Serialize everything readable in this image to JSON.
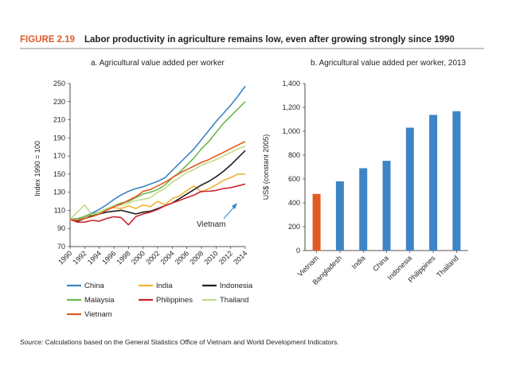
{
  "figure": {
    "number": "FIGURE 2.19",
    "title": "Labor productivity in agriculture remains low, even after growing strongly since 1990",
    "source_label": "Source:",
    "source_text": "Calculations based on the General Statistics Office of Vietnam and World Development Indicators."
  },
  "chart_data": [
    {
      "type": "line",
      "title": "a. Agricultural value added per worker",
      "xlabel": "",
      "ylabel": "Index 1990 = 100",
      "x": [
        1990,
        1991,
        1992,
        1993,
        1994,
        1995,
        1996,
        1997,
        1998,
        1999,
        2000,
        2001,
        2002,
        2003,
        2004,
        2005,
        2006,
        2007,
        2008,
        2009,
        2010,
        2011,
        2012,
        2013,
        2014
      ],
      "xticks": [
        "1990",
        "1992",
        "1994",
        "1996",
        "1998",
        "2000",
        "2002",
        "2004",
        "2006",
        "2008",
        "2010",
        "2012",
        "2014"
      ],
      "ylim": [
        70,
        250
      ],
      "yticks": [
        70,
        90,
        110,
        130,
        150,
        170,
        190,
        210,
        230,
        250
      ],
      "annotation": "Vietnam",
      "series": [
        {
          "name": "China",
          "color": "#3d85c6",
          "values": [
            100,
            99,
            103,
            107,
            111,
            116,
            122,
            127,
            131,
            134,
            136,
            139,
            142,
            146,
            154,
            162,
            170,
            178,
            188,
            198,
            208,
            217,
            226,
            236,
            247
          ]
        },
        {
          "name": "India",
          "color": "#f2b233",
          "values": [
            100,
            97,
            104,
            105,
            108,
            111,
            113,
            112,
            115,
            112,
            116,
            114,
            120,
            116,
            123,
            126,
            132,
            137,
            130,
            134,
            138,
            143,
            146,
            150,
            150
          ]
        },
        {
          "name": "Indonesia",
          "color": "#231f20",
          "values": [
            100,
            98,
            101,
            104,
            106,
            108,
            109,
            110,
            108,
            106,
            108,
            109,
            112,
            115,
            118,
            123,
            128,
            133,
            138,
            142,
            147,
            153,
            160,
            168,
            176
          ]
        },
        {
          "name": "Malaysia",
          "color": "#6db84f",
          "values": [
            100,
            101,
            103,
            106,
            108,
            111,
            115,
            118,
            120,
            124,
            128,
            130,
            133,
            138,
            146,
            152,
            160,
            168,
            178,
            186,
            196,
            206,
            214,
            222,
            230
          ]
        },
        {
          "name": "Philippines",
          "color": "#c8272f",
          "values": [
            100,
            97,
            97,
            99,
            98,
            101,
            103,
            102,
            94,
            103,
            106,
            108,
            111,
            115,
            118,
            121,
            124,
            127,
            131,
            131,
            132,
            134,
            135,
            137,
            139
          ]
        },
        {
          "name": "Thailand",
          "color": "#bfdd8a",
          "values": [
            100,
            108,
            116,
            105,
            108,
            112,
            115,
            116,
            118,
            121,
            122,
            124,
            130,
            134,
            141,
            146,
            152,
            155,
            160,
            163,
            166,
            170,
            174,
            178,
            181
          ]
        },
        {
          "name": "Vietnam",
          "color": "#e35b24",
          "values": [
            100,
            99,
            101,
            103,
            106,
            110,
            114,
            117,
            121,
            125,
            131,
            133,
            137,
            141,
            146,
            151,
            155,
            159,
            163,
            166,
            170,
            174,
            178,
            182,
            186
          ]
        }
      ]
    },
    {
      "type": "bar",
      "title": "b. Agricultural value added per worker, 2013",
      "xlabel": "",
      "ylabel": "US$ (constant 2005)",
      "categories": [
        "Vietnam",
        "Bangladesh",
        "India",
        "China",
        "Indonesia",
        "Philippines",
        "Thailand"
      ],
      "values": [
        475,
        580,
        690,
        752,
        1030,
        1137,
        1168
      ],
      "colors": [
        "#e35b24",
        "#3d85c6",
        "#3d85c6",
        "#3d85c6",
        "#3d85c6",
        "#3d85c6",
        "#3d85c6"
      ],
      "ylim": [
        0,
        1400
      ],
      "ytick_labels": [
        "0",
        "200",
        "400",
        "600",
        "800",
        "1,000",
        "1,200",
        "1,400"
      ]
    }
  ]
}
